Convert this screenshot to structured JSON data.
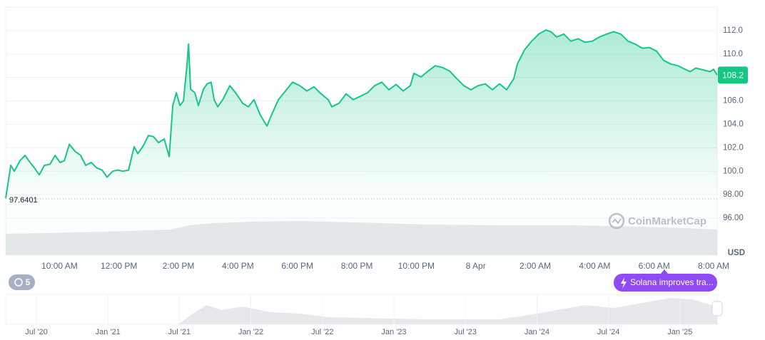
{
  "chart_data": {
    "type": "line",
    "color": "#16c784",
    "x": [
      8.19,
      8.36,
      8.48,
      8.67,
      8.84,
      9.01,
      9.15,
      9.32,
      9.49,
      9.68,
      9.85,
      10.02,
      10.16,
      10.33,
      10.52,
      10.71,
      10.88,
      11.07,
      11.24,
      11.43,
      11.6,
      11.79,
      11.96,
      12.13,
      12.32,
      12.51,
      12.63,
      12.8,
      12.99,
      13.16,
      13.33,
      13.52,
      13.69,
      13.81,
      13.93,
      14.05,
      14.17,
      14.29,
      14.34,
      14.41,
      14.55,
      14.67,
      14.84,
      14.96,
      15.1,
      15.2,
      15.32,
      15.49,
      15.73,
      15.92,
      16.16,
      16.35,
      16.54,
      16.76,
      16.98,
      17.12,
      17.36,
      17.6,
      17.84,
      18.08,
      18.32,
      18.56,
      18.8,
      19.04,
      19.16,
      19.4,
      19.64,
      19.88,
      20.12,
      20.36,
      20.6,
      20.84,
      21.08,
      21.32,
      21.56,
      21.8,
      21.92,
      22.16,
      22.4,
      22.64,
      22.88,
      23.12,
      23.36,
      23.6,
      23.84,
      24.08,
      24.32,
      24.56,
      24.8,
      25.04,
      25.28,
      25.4,
      25.64,
      25.88,
      26.12,
      26.36,
      26.53,
      26.72,
      26.96,
      27.2,
      27.44,
      27.68,
      27.92,
      28.16,
      28.4,
      28.64,
      28.88,
      29.12,
      29.36,
      29.6,
      29.84,
      30.08,
      30.32,
      30.56,
      30.8,
      31.04,
      31.21,
      31.4,
      31.64,
      31.88,
      32.0,
      32.12
    ],
    "values": [
      97.7,
      100.5,
      100.0,
      100.9,
      101.35,
      100.75,
      100.3,
      99.7,
      100.5,
      100.6,
      101.35,
      100.75,
      100.9,
      102.3,
      101.7,
      101.35,
      100.5,
      100.75,
      100.3,
      100.1,
      99.5,
      100.0,
      100.1,
      100.0,
      100.1,
      102.1,
      101.5,
      102.1,
      103.05,
      102.95,
      102.45,
      102.75,
      101.25,
      105.6,
      106.7,
      105.6,
      106.0,
      109.15,
      110.85,
      107.0,
      106.7,
      105.6,
      107.0,
      107.45,
      107.6,
      106.1,
      105.5,
      106.1,
      107.3,
      106.7,
      105.8,
      105.5,
      106.1,
      104.75,
      103.85,
      104.75,
      106.1,
      106.85,
      107.6,
      107.3,
      106.85,
      107.2,
      106.6,
      106.1,
      105.5,
      105.8,
      106.6,
      106.1,
      106.4,
      106.7,
      107.3,
      107.6,
      106.95,
      107.4,
      106.85,
      107.3,
      108.35,
      108.05,
      108.55,
      109.0,
      108.85,
      108.55,
      107.9,
      107.3,
      106.95,
      107.3,
      107.45,
      106.95,
      107.45,
      106.95,
      107.9,
      109.15,
      110.35,
      111.1,
      111.7,
      112.05,
      111.9,
      111.45,
      111.7,
      111.1,
      111.3,
      111.0,
      111.1,
      111.45,
      111.7,
      111.9,
      111.7,
      111.1,
      110.85,
      110.5,
      110.55,
      110.25,
      109.45,
      109.15,
      109.0,
      108.7,
      108.5,
      108.8,
      108.65,
      108.5,
      108.7,
      108.2
    ],
    "xlim": [
      8.19,
      32.12
    ],
    "xticks": [
      {
        "value": 10,
        "label": "10:00 AM"
      },
      {
        "value": 12,
        "label": "12:00 PM"
      },
      {
        "value": 14,
        "label": "2:00 PM"
      },
      {
        "value": 16,
        "label": "4:00 PM"
      },
      {
        "value": 18,
        "label": "6:00 PM"
      },
      {
        "value": 20,
        "label": "8:00 PM"
      },
      {
        "value": 22,
        "label": "10:00 PM"
      },
      {
        "value": 24,
        "label": "8 Apr"
      },
      {
        "value": 26,
        "label": "2:00 AM"
      },
      {
        "value": 28,
        "label": "4:00 AM"
      },
      {
        "value": 30,
        "label": "6:00 AM"
      },
      {
        "value": 32,
        "label": "8:00 AM"
      }
    ],
    "ylim": [
      92.84,
      114
    ],
    "yticks": [
      {
        "value": 112,
        "label": "112.0"
      },
      {
        "value": 110,
        "label": "110.0"
      },
      {
        "value": 108,
        "label": "108.0"
      },
      {
        "value": 106,
        "label": "106.0"
      },
      {
        "value": 104,
        "label": "104.0"
      },
      {
        "value": 102,
        "label": "102.0"
      },
      {
        "value": 100,
        "label": "100.0"
      },
      {
        "value": 98,
        "label": "98.00"
      },
      {
        "value": 96,
        "label": "96.00"
      }
    ],
    "grid": true,
    "reference_line": 97.6401,
    "current_price": 108.2,
    "currency": "USD"
  },
  "watermark": "CoinMarketCap",
  "news_count": "5",
  "news": "Solana improves tra...",
  "navigator_labels": [
    "Jul '20",
    "Jan '21",
    "Jul '21",
    "Jan '22",
    "Jul '22",
    "Jan '23",
    "Jul '23",
    "Jan '24",
    "Jul '24",
    "Jan '25"
  ]
}
